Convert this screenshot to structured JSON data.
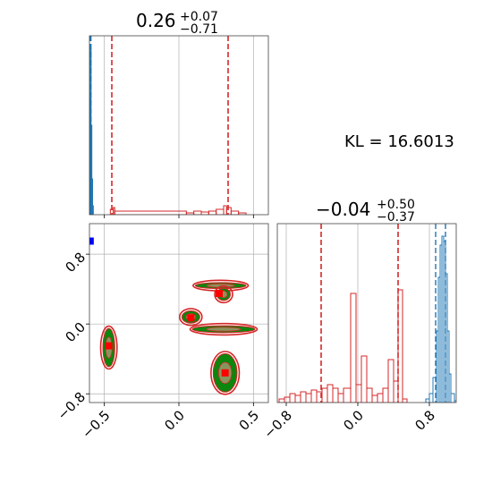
{
  "chart_data": {
    "type": "corner",
    "annotation": "KL = 16.6013",
    "colors": {
      "primary": "#d62728",
      "reference": "#1f77b4",
      "contour_fill": "#008000",
      "marker": "#ff0000",
      "truth_marker": "#0000ff",
      "grid": "#b0b0b0"
    },
    "params": [
      {
        "title_main": "0.26",
        "title_sup": "+0.07",
        "title_sub": "−0.71",
        "xlim": [
          -0.6,
          0.6
        ],
        "xticks": [
          -0.5,
          0.0,
          0.5
        ],
        "xtick_labels": [
          "−0.5",
          "0.0",
          "0.5"
        ],
        "quantiles_red": [
          -0.45,
          0.33
        ],
        "quantiles_blue": [
          -0.595,
          -0.59
        ],
        "hist_red": [
          {
            "x": -0.46,
            "y": 0.03
          },
          {
            "x": -0.44,
            "y": 0.04
          },
          {
            "x": -0.43,
            "y": 0.02
          },
          {
            "x": 0.05,
            "y": 0.01
          },
          {
            "x": 0.1,
            "y": 0.02
          },
          {
            "x": 0.15,
            "y": 0.015
          },
          {
            "x": 0.2,
            "y": 0.02
          },
          {
            "x": 0.25,
            "y": 0.03
          },
          {
            "x": 0.3,
            "y": 0.05
          },
          {
            "x": 0.32,
            "y": 0.04
          },
          {
            "x": 0.35,
            "y": 0.02
          },
          {
            "x": 0.4,
            "y": 0.01
          }
        ],
        "hist_blue": [
          {
            "x": -0.6,
            "y": 0.65
          },
          {
            "x": -0.595,
            "y": 0.93
          },
          {
            "x": -0.59,
            "y": 0.5
          },
          {
            "x": -0.585,
            "y": 0.2
          },
          {
            "x": -0.58,
            "y": 0.05
          }
        ]
      },
      {
        "title_main": "−0.04",
        "title_sup": "+0.50",
        "title_sub": "−0.37",
        "xlim": [
          -0.9,
          1.1
        ],
        "xticks": [
          -0.8,
          0.0,
          0.8
        ],
        "xtick_labels": [
          "−0.8",
          "0.0",
          "0.8"
        ],
        "quantiles_red": [
          -0.41,
          0.45
        ],
        "quantiles_blue": [
          0.87,
          0.98
        ],
        "hist_red": [
          {
            "x": -0.88,
            "y": 0.02
          },
          {
            "x": -0.82,
            "y": 0.03
          },
          {
            "x": -0.76,
            "y": 0.05
          },
          {
            "x": -0.7,
            "y": 0.04
          },
          {
            "x": -0.64,
            "y": 0.06
          },
          {
            "x": -0.58,
            "y": 0.05
          },
          {
            "x": -0.52,
            "y": 0.07
          },
          {
            "x": -0.46,
            "y": 0.06
          },
          {
            "x": -0.4,
            "y": 0.08
          },
          {
            "x": -0.34,
            "y": 0.1
          },
          {
            "x": -0.28,
            "y": 0.08
          },
          {
            "x": -0.22,
            "y": 0.05
          },
          {
            "x": -0.16,
            "y": 0.08
          },
          {
            "x": -0.08,
            "y": 0.61
          },
          {
            "x": -0.02,
            "y": 0.1
          },
          {
            "x": 0.04,
            "y": 0.26
          },
          {
            "x": 0.1,
            "y": 0.08
          },
          {
            "x": 0.16,
            "y": 0.04
          },
          {
            "x": 0.22,
            "y": 0.05
          },
          {
            "x": 0.28,
            "y": 0.08
          },
          {
            "x": 0.34,
            "y": 0.24
          },
          {
            "x": 0.4,
            "y": 0.12
          },
          {
            "x": 0.45,
            "y": 0.63
          },
          {
            "x": 0.5,
            "y": 0.02
          }
        ],
        "hist_blue": [
          {
            "x": 0.76,
            "y": 0.02
          },
          {
            "x": 0.8,
            "y": 0.05
          },
          {
            "x": 0.84,
            "y": 0.14
          },
          {
            "x": 0.88,
            "y": 0.4
          },
          {
            "x": 0.9,
            "y": 0.7
          },
          {
            "x": 0.92,
            "y": 0.88
          },
          {
            "x": 0.94,
            "y": 0.93
          },
          {
            "x": 0.96,
            "y": 0.9
          },
          {
            "x": 0.98,
            "y": 0.72
          },
          {
            "x": 1.0,
            "y": 0.4
          },
          {
            "x": 1.02,
            "y": 0.16
          },
          {
            "x": 1.04,
            "y": 0.05
          },
          {
            "x": 1.08,
            "y": 0.01
          }
        ]
      }
    ],
    "joint": {
      "xlim": [
        -0.6,
        0.6
      ],
      "ylim": [
        -0.9,
        1.15
      ],
      "yticks": [
        -0.8,
        0.0,
        0.8
      ],
      "ytick_labels": [
        "−0.8",
        "0.0",
        "0.8"
      ],
      "blobs": [
        {
          "cx": -0.47,
          "cy": -0.27,
          "rx": 0.04,
          "ry": 0.22
        },
        {
          "cx": 0.28,
          "cy": 0.44,
          "rx": 0.17,
          "ry": 0.035
        },
        {
          "cx": 0.3,
          "cy": 0.34,
          "rx": 0.045,
          "ry": 0.07
        },
        {
          "cx": 0.08,
          "cy": 0.08,
          "rx": 0.06,
          "ry": 0.07
        },
        {
          "cx": 0.3,
          "cy": -0.06,
          "rx": 0.21,
          "ry": 0.04
        },
        {
          "cx": 0.31,
          "cy": -0.56,
          "rx": 0.08,
          "ry": 0.22
        }
      ],
      "markers": [
        {
          "x": -0.47,
          "y": -0.25
        },
        {
          "x": 0.27,
          "y": 0.35
        },
        {
          "x": 0.08,
          "y": 0.07
        },
        {
          "x": 0.31,
          "y": -0.56
        }
      ],
      "truth": {
        "x": -0.595,
        "y": 0.95
      }
    }
  }
}
